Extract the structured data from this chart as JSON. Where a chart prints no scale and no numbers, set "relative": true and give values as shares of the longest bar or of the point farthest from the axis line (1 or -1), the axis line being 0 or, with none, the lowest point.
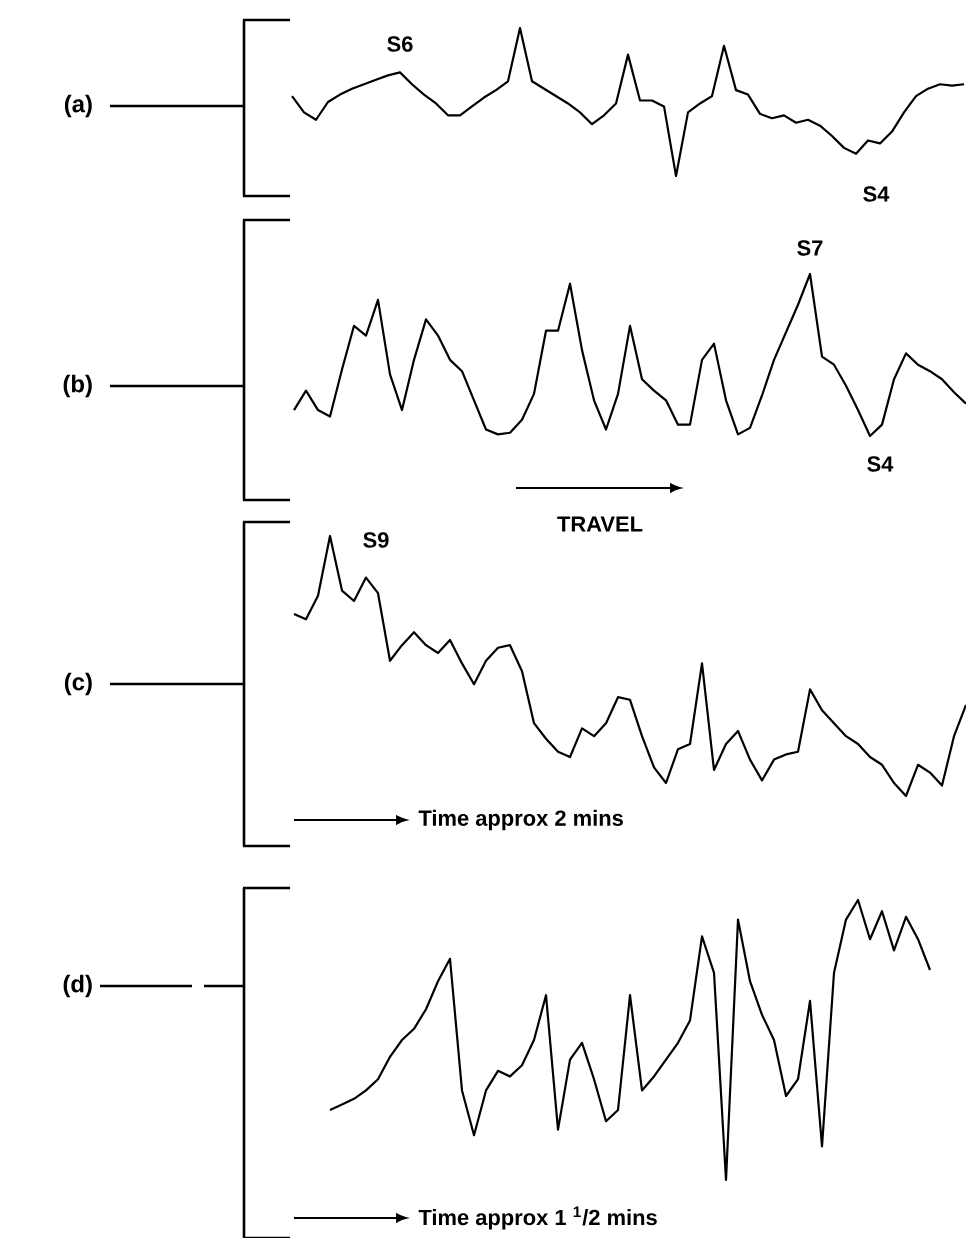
{
  "chart_data": [
    {
      "type": "line",
      "relative": true,
      "color": "#000000",
      "annotations": [
        "(a)",
        "S6",
        "S4"
      ],
      "categories": [
        null,
        null,
        null,
        null,
        null,
        null,
        null,
        null,
        null,
        null,
        null,
        null,
        null,
        null,
        null,
        null,
        null,
        null,
        null,
        null,
        null,
        null,
        null,
        null,
        null,
        null,
        null,
        null,
        null,
        null,
        null,
        null,
        null,
        null,
        null,
        null,
        null,
        null,
        null,
        null,
        null,
        null,
        null,
        null,
        null,
        null,
        null,
        null,
        null,
        null,
        null,
        null,
        null,
        null,
        null,
        null,
        null
      ],
      "values": [
        0.54,
        0.43,
        0.38,
        0.5,
        0.55,
        0.59,
        0.62,
        0.65,
        0.68,
        0.7,
        0.62,
        0.55,
        0.49,
        0.41,
        0.41,
        0.47,
        0.53,
        0.58,
        0.64,
        1.0,
        0.64,
        0.59,
        0.54,
        0.49,
        0.43,
        0.35,
        0.41,
        0.49,
        0.82,
        0.51,
        0.51,
        0.47,
        0.0,
        0.43,
        0.49,
        0.54,
        0.88,
        0.58,
        0.55,
        0.42,
        0.39,
        0.41,
        0.36,
        0.38,
        0.34,
        0.27,
        0.19,
        0.15,
        0.24,
        0.22,
        0.3,
        0.43,
        0.54,
        0.59,
        0.62,
        0.61,
        0.62
      ]
    },
    {
      "type": "line",
      "relative": true,
      "color": "#000000",
      "annotations": [
        "(b)",
        "S7",
        "S4",
        "TRAVEL"
      ],
      "categories": [
        null,
        null,
        null,
        null,
        null,
        null,
        null,
        null,
        null,
        null,
        null,
        null,
        null,
        null,
        null,
        null,
        null,
        null,
        null,
        null,
        null,
        null,
        null,
        null,
        null,
        null,
        null,
        null,
        null,
        null,
        null,
        null,
        null,
        null,
        null,
        null,
        null,
        null,
        null,
        null,
        null,
        null,
        null,
        null,
        null,
        null,
        null,
        null,
        null,
        null,
        null,
        null,
        null,
        null,
        null,
        null,
        null
      ],
      "values": [
        0.16,
        0.28,
        0.16,
        0.12,
        0.41,
        0.68,
        0.62,
        0.84,
        0.38,
        0.16,
        0.47,
        0.72,
        0.62,
        0.47,
        0.4,
        0.22,
        0.04,
        0.01,
        0.02,
        0.1,
        0.26,
        0.65,
        0.65,
        0.94,
        0.53,
        0.22,
        0.04,
        0.26,
        0.68,
        0.35,
        0.28,
        0.22,
        0.07,
        0.07,
        0.47,
        0.57,
        0.22,
        0.01,
        0.05,
        0.25,
        0.47,
        0.64,
        0.81,
        1.0,
        0.49,
        0.44,
        0.31,
        0.16,
        0.0,
        0.07,
        0.35,
        0.51,
        0.44,
        0.4,
        0.35,
        0.27,
        0.2
      ]
    },
    {
      "type": "line",
      "relative": true,
      "color": "#000000",
      "annotations": [
        "(c)",
        "S9",
        "Time approx 2 mins"
      ],
      "categories": [
        null,
        null,
        null,
        null,
        null,
        null,
        null,
        null,
        null,
        null,
        null,
        null,
        null,
        null,
        null,
        null,
        null,
        null,
        null,
        null,
        null,
        null,
        null,
        null,
        null,
        null,
        null,
        null,
        null,
        null,
        null,
        null,
        null,
        null,
        null,
        null,
        null,
        null,
        null,
        null,
        null,
        null,
        null,
        null,
        null,
        null,
        null,
        null,
        null,
        null,
        null,
        null,
        null,
        null,
        null,
        null,
        null
      ],
      "values": [
        0.7,
        0.68,
        0.77,
        1.0,
        0.79,
        0.75,
        0.84,
        0.78,
        0.52,
        0.58,
        0.63,
        0.58,
        0.55,
        0.6,
        0.51,
        0.43,
        0.52,
        0.57,
        0.58,
        0.48,
        0.28,
        0.22,
        0.17,
        0.15,
        0.26,
        0.23,
        0.28,
        0.38,
        0.37,
        0.23,
        0.11,
        0.05,
        0.18,
        0.2,
        0.51,
        0.1,
        0.2,
        0.25,
        0.14,
        0.06,
        0.14,
        0.16,
        0.17,
        0.41,
        0.33,
        0.28,
        0.23,
        0.2,
        0.15,
        0.12,
        0.05,
        0.0,
        0.12,
        0.09,
        0.04,
        0.23,
        0.35
      ]
    },
    {
      "type": "line",
      "relative": true,
      "color": "#000000",
      "annotations": [
        "(d)",
        "Time approx 1 $^{1}$/2 mins"
      ],
      "categories": [
        null,
        null,
        null,
        null,
        null,
        null,
        null,
        null,
        null,
        null,
        null,
        null,
        null,
        null,
        null,
        null,
        null,
        null,
        null,
        null,
        null,
        null,
        null,
        null,
        null,
        null,
        null,
        null,
        null,
        null,
        null,
        null,
        null,
        null,
        null,
        null,
        null,
        null,
        null,
        null,
        null,
        null,
        null,
        null,
        null,
        null,
        null,
        null,
        null,
        null,
        null
      ],
      "values": [
        0.25,
        0.27,
        0.29,
        0.32,
        0.36,
        0.44,
        0.5,
        0.54,
        0.61,
        0.71,
        0.79,
        0.32,
        0.16,
        0.32,
        0.39,
        0.37,
        0.41,
        0.5,
        0.66,
        0.18,
        0.43,
        0.49,
        0.36,
        0.21,
        0.25,
        0.66,
        0.32,
        0.37,
        0.43,
        0.49,
        0.57,
        0.87,
        0.74,
        0.0,
        0.93,
        0.71,
        0.59,
        0.5,
        0.3,
        0.36,
        0.64,
        0.12,
        0.74,
        0.93,
        1.0,
        0.86,
        0.96,
        0.82,
        0.94,
        0.86,
        0.75
      ]
    }
  ]
}
